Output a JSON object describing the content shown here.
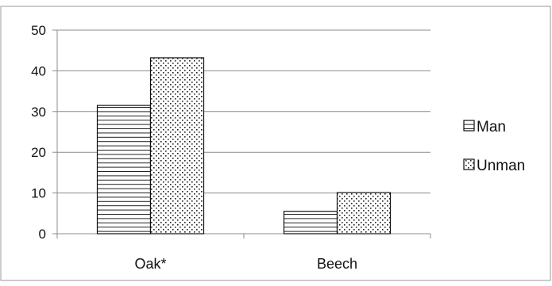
{
  "chart_data": {
    "type": "bar",
    "categories": [
      "Oak*",
      "Beech"
    ],
    "series": [
      {
        "name": "Man",
        "values": [
          31.5,
          5.5
        ]
      },
      {
        "name": "Unman",
        "values": [
          43.2,
          10.1
        ]
      }
    ],
    "ylim": [
      0,
      50
    ],
    "yticks": [
      0,
      10,
      20,
      30,
      40,
      50
    ],
    "grid": true,
    "legend": "right",
    "series_patterns": [
      "horizontal-lines",
      "dots"
    ]
  }
}
